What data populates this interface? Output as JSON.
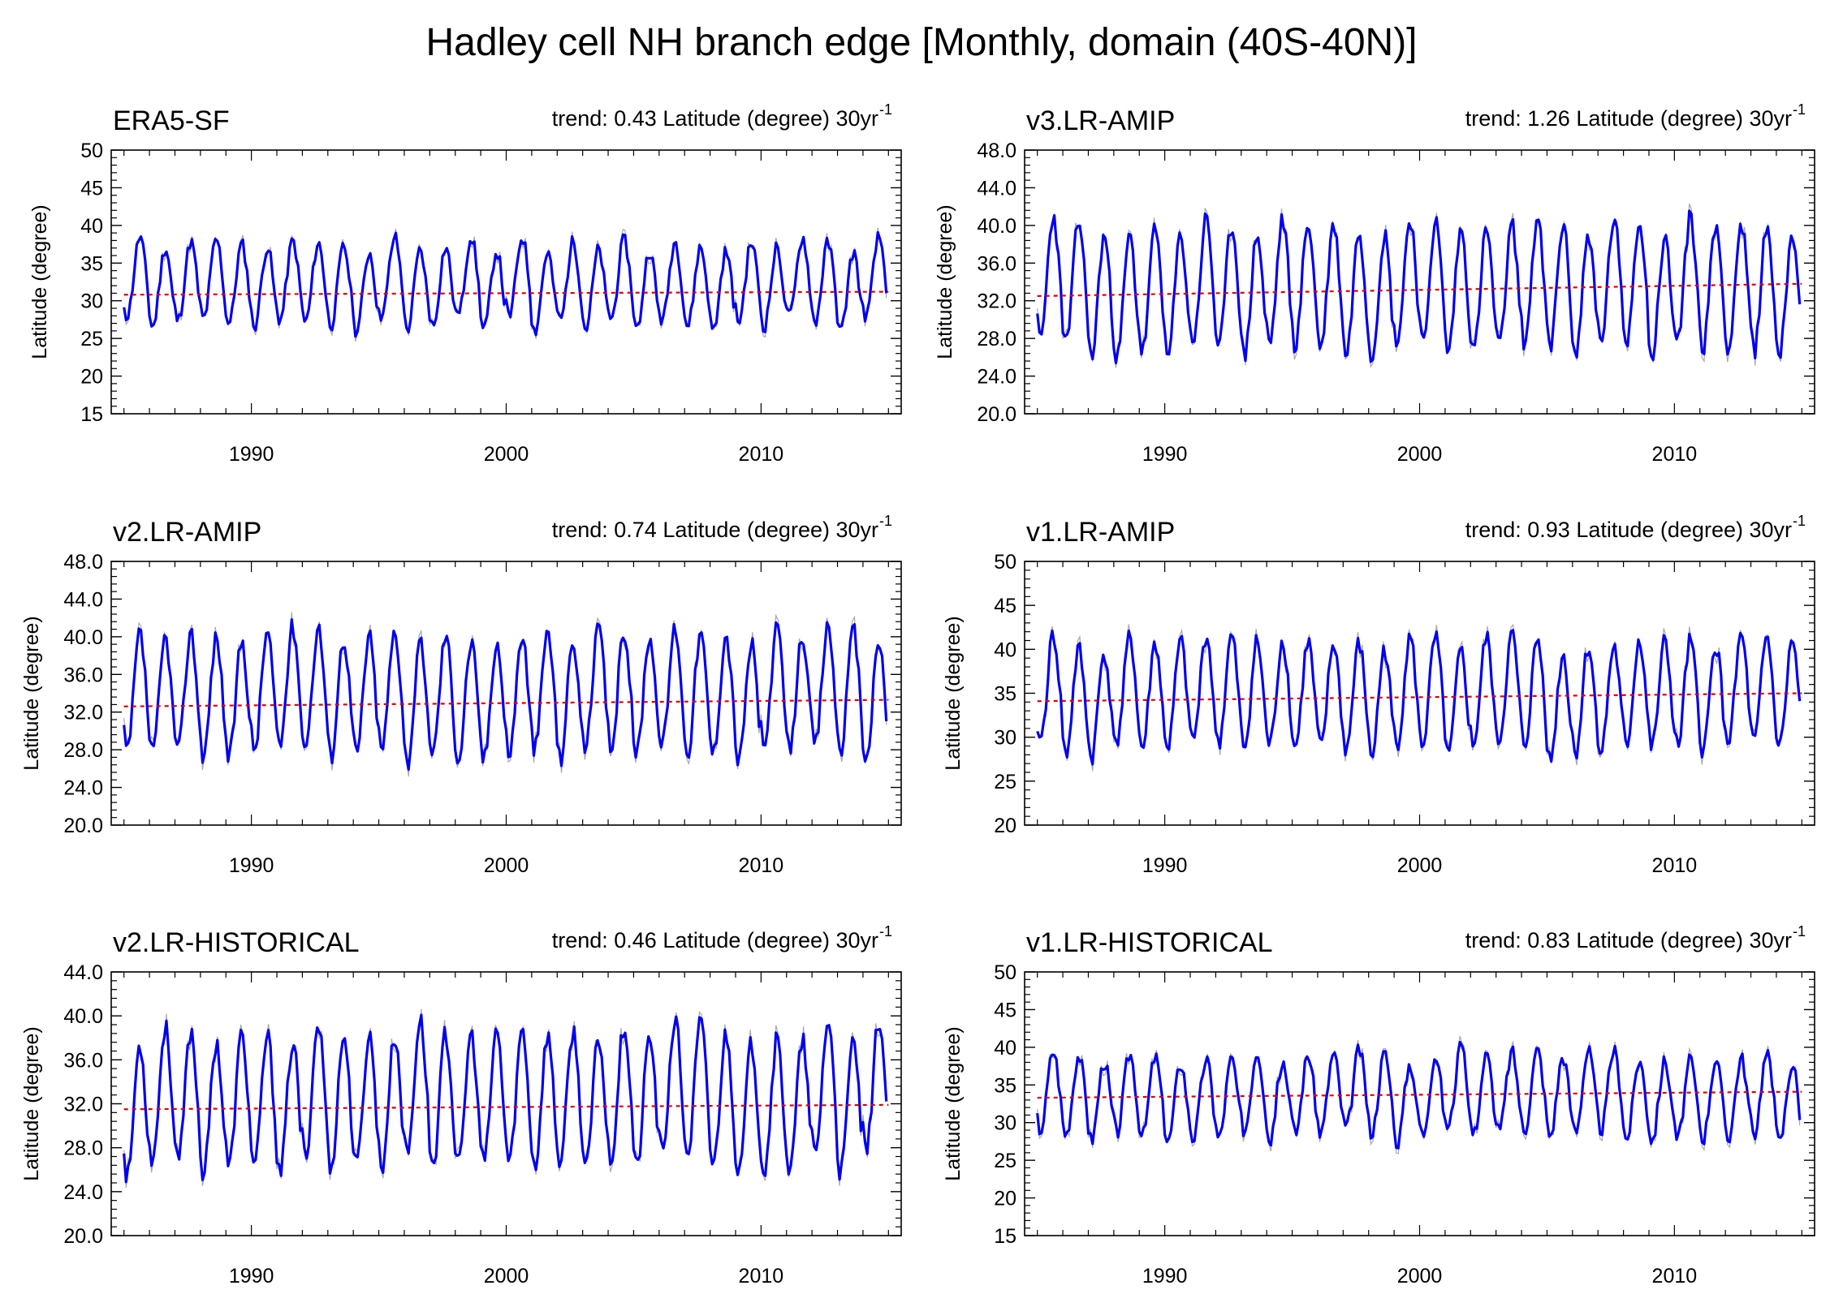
{
  "title": "Hadley cell NH branch edge [Monthly, domain (40S-40N)]",
  "colors": {
    "monthly": "#a8a8a8",
    "smoothed": "#0000ee",
    "trend": "#e00000",
    "frame": "#000000"
  },
  "chart_data": [
    {
      "type": "line",
      "name": "ERA5-SF",
      "trend_text": "trend: 0.43 Latitude (degree) 30yr",
      "trend_sup": "-1",
      "ylabel": "Latitude (degree)",
      "ylim": [
        15,
        50
      ],
      "yticks": [
        15,
        20,
        25,
        30,
        35,
        40,
        45,
        50
      ],
      "ytick_labels": [
        "15",
        "20",
        "25",
        "30",
        "35",
        "40",
        "45",
        "50"
      ],
      "xlim": [
        1984.5,
        2015.5
      ],
      "xticks": [
        1990,
        2000,
        2010
      ],
      "xtick_labels": [
        "1990",
        "2000",
        "2010"
      ],
      "series": [
        {
          "name": "monthly",
          "x_start": 1985.0,
          "x_end": 2014.92,
          "winter_min": 27.0,
          "summer_max": 37.5,
          "noise": 1.6,
          "seed": 11
        },
        {
          "name": "smoothed",
          "x_start": 1985.0,
          "x_end": 2014.92,
          "winter_min": 27.0,
          "summer_max": 37.5,
          "noise": 0.9,
          "seed": 11
        },
        {
          "name": "trend",
          "x": [
            1985.0,
            2015.0
          ],
          "y": [
            30.8,
            31.2
          ]
        }
      ]
    },
    {
      "type": "line",
      "name": "v3.LR-AMIP",
      "trend_text": "trend: 1.26 Latitude (degree) 30yr",
      "trend_sup": "-1",
      "ylabel": "Latitude (degree)",
      "ylim": [
        20,
        48
      ],
      "yticks": [
        20,
        24,
        28,
        32,
        36,
        40,
        44,
        48
      ],
      "ytick_labels": [
        "20.0",
        "24.0",
        "28.0",
        "32.0",
        "36.0",
        "40.0",
        "44.0",
        "48.0"
      ],
      "xlim": [
        1984.5,
        2015.5
      ],
      "xticks": [
        1990,
        2000,
        2010
      ],
      "xtick_labels": [
        "1990",
        "2000",
        "2010"
      ],
      "series": [
        {
          "name": "monthly",
          "x_start": 1985.0,
          "x_end": 2014.92,
          "winter_min": 27.0,
          "summer_max": 40.0,
          "noise": 1.8,
          "seed": 23
        },
        {
          "name": "smoothed",
          "x_start": 1985.0,
          "x_end": 2014.92,
          "winter_min": 27.0,
          "summer_max": 40.0,
          "noise": 1.0,
          "seed": 23
        },
        {
          "name": "trend",
          "x": [
            1985.0,
            2015.0
          ],
          "y": [
            32.5,
            33.8
          ]
        }
      ]
    },
    {
      "type": "line",
      "name": "v2.LR-AMIP",
      "trend_text": "trend: 0.74 Latitude (degree) 30yr",
      "trend_sup": "-1",
      "ylabel": "Latitude (degree)",
      "ylim": [
        20,
        48
      ],
      "yticks": [
        20,
        24,
        28,
        32,
        36,
        40,
        44,
        48
      ],
      "ytick_labels": [
        "20.0",
        "24.0",
        "28.0",
        "32.0",
        "36.0",
        "40.0",
        "44.0",
        "48.0"
      ],
      "xlim": [
        1984.5,
        2015.5
      ],
      "xticks": [
        1990,
        2000,
        2010
      ],
      "xtick_labels": [
        "1990",
        "2000",
        "2010"
      ],
      "series": [
        {
          "name": "monthly",
          "x_start": 1985.0,
          "x_end": 2014.92,
          "winter_min": 27.5,
          "summer_max": 40.0,
          "noise": 1.8,
          "seed": 37
        },
        {
          "name": "smoothed",
          "x_start": 1985.0,
          "x_end": 2014.92,
          "winter_min": 27.5,
          "summer_max": 40.0,
          "noise": 1.0,
          "seed": 37
        },
        {
          "name": "trend",
          "x": [
            1985.0,
            2015.0
          ],
          "y": [
            32.6,
            33.3
          ]
        }
      ]
    },
    {
      "type": "line",
      "name": "v1.LR-AMIP",
      "trend_text": "trend: 0.93 Latitude (degree) 30yr",
      "trend_sup": "-1",
      "ylabel": "Latitude (degree)",
      "ylim": [
        20,
        50
      ],
      "yticks": [
        20,
        25,
        30,
        35,
        40,
        45,
        50
      ],
      "ytick_labels": [
        "20",
        "25",
        "30",
        "35",
        "40",
        "45",
        "50"
      ],
      "xlim": [
        1984.5,
        2015.5
      ],
      "xticks": [
        1990,
        2000,
        2010
      ],
      "xtick_labels": [
        "1990",
        "2000",
        "2010"
      ],
      "series": [
        {
          "name": "monthly",
          "x_start": 1985.0,
          "x_end": 2014.92,
          "winter_min": 28.5,
          "summer_max": 40.5,
          "noise": 2.0,
          "seed": 41
        },
        {
          "name": "smoothed",
          "x_start": 1985.0,
          "x_end": 2014.92,
          "winter_min": 28.5,
          "summer_max": 40.5,
          "noise": 1.1,
          "seed": 41
        },
        {
          "name": "trend",
          "x": [
            1985.0,
            2015.0
          ],
          "y": [
            34.1,
            35.0
          ]
        }
      ]
    },
    {
      "type": "line",
      "name": "v2.LR-HISTORICAL",
      "trend_text": "trend: 0.46 Latitude (degree) 30yr",
      "trend_sup": "-1",
      "ylabel": "Latitude (degree)",
      "ylim": [
        20,
        44
      ],
      "yticks": [
        20,
        24,
        28,
        32,
        36,
        40,
        44
      ],
      "ytick_labels": [
        "20.0",
        "24.0",
        "28.0",
        "32.0",
        "36.0",
        "40.0",
        "44.0"
      ],
      "xlim": [
        1984.5,
        2015.5
      ],
      "xticks": [
        1990,
        2000,
        2010
      ],
      "xtick_labels": [
        "1990",
        "2000",
        "2010"
      ],
      "series": [
        {
          "name": "monthly",
          "x_start": 1985.0,
          "x_end": 2014.92,
          "winter_min": 26.5,
          "summer_max": 38.5,
          "noise": 1.6,
          "seed": 53
        },
        {
          "name": "smoothed",
          "x_start": 1985.0,
          "x_end": 2014.92,
          "winter_min": 26.5,
          "summer_max": 38.5,
          "noise": 0.9,
          "seed": 53
        },
        {
          "name": "trend",
          "x": [
            1985.0,
            2015.0
          ],
          "y": [
            31.5,
            31.9
          ]
        }
      ]
    },
    {
      "type": "line",
      "name": "v1.LR-HISTORICAL",
      "trend_text": "trend: 0.83 Latitude (degree) 30yr",
      "trend_sup": "-1",
      "ylabel": "Latitude (degree)",
      "ylim": [
        15,
        50
      ],
      "yticks": [
        15,
        20,
        25,
        30,
        35,
        40,
        45,
        50
      ],
      "ytick_labels": [
        "15",
        "20",
        "25",
        "30",
        "35",
        "40",
        "45",
        "50"
      ],
      "xlim": [
        1984.5,
        2015.5
      ],
      "xticks": [
        1990,
        2000,
        2010
      ],
      "xtick_labels": [
        "1990",
        "2000",
        "2010"
      ],
      "series": [
        {
          "name": "monthly",
          "x_start": 1985.0,
          "x_end": 2014.92,
          "winter_min": 28.5,
          "summer_max": 39.0,
          "noise": 1.8,
          "seed": 67
        },
        {
          "name": "smoothed",
          "x_start": 1985.0,
          "x_end": 2014.92,
          "winter_min": 28.5,
          "summer_max": 39.0,
          "noise": 1.0,
          "seed": 67
        },
        {
          "name": "trend",
          "x": [
            1985.0,
            2015.0
          ],
          "y": [
            33.3,
            34.1
          ]
        }
      ]
    }
  ]
}
